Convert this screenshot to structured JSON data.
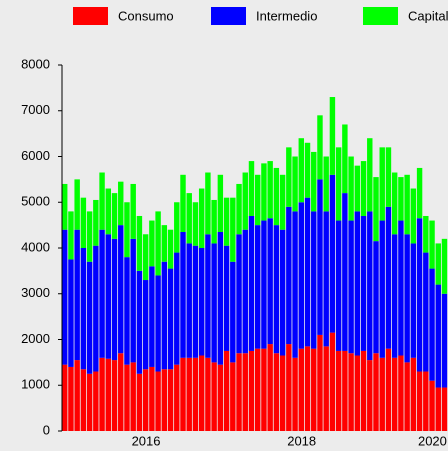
{
  "chart_data": {
    "type": "stacked_bar",
    "categories": [
      null,
      null,
      null,
      null,
      null,
      null,
      null,
      null,
      null,
      null,
      null,
      null,
      null,
      "2016",
      null,
      null,
      null,
      null,
      null,
      null,
      null,
      null,
      null,
      null,
      null,
      null,
      null,
      null,
      null,
      null,
      null,
      null,
      null,
      null,
      null,
      null,
      null,
      null,
      "2018",
      null,
      null,
      null,
      null,
      null,
      null,
      null,
      null,
      null,
      null,
      null,
      null,
      null,
      null,
      null,
      null,
      null,
      null,
      null,
      null,
      "2020",
      null,
      null
    ],
    "series": [
      {
        "name": "Consumo",
        "color": "#ff0000",
        "values": [
          1450,
          1400,
          1550,
          1350,
          1250,
          1300,
          1600,
          1580,
          1550,
          1700,
          1450,
          1500,
          1250,
          1350,
          1400,
          1300,
          1350,
          1350,
          1450,
          1600,
          1600,
          1600,
          1650,
          1600,
          1500,
          1450,
          1750,
          1500,
          1700,
          1700,
          1750,
          1800,
          1800,
          1900,
          1700,
          1650,
          1900,
          1600,
          1800,
          1850,
          1800,
          2100,
          1850,
          2150,
          1750,
          1750,
          1700,
          1650,
          1750,
          1550,
          1700,
          1600,
          1800,
          1600,
          1650,
          1500,
          1600,
          1300,
          1300,
          1100,
          950,
          950
        ]
      },
      {
        "name": "Intermedio",
        "color": "#0000ff",
        "values": [
          2950,
          2350,
          2850,
          2650,
          2450,
          2750,
          2800,
          2720,
          2650,
          2800,
          2350,
          2700,
          2250,
          1950,
          2200,
          2100,
          2350,
          2200,
          2450,
          2750,
          2500,
          2450,
          2350,
          2700,
          2600,
          2900,
          2300,
          2200,
          2600,
          2700,
          2950,
          2700,
          2800,
          2750,
          2800,
          2750,
          3000,
          3200,
          3200,
          3250,
          3000,
          3400,
          2950,
          3450,
          2850,
          3450,
          2900,
          3150,
          2950,
          3250,
          2450,
          3000,
          3100,
          2700,
          2950,
          2800,
          2500,
          3350,
          2600,
          2450,
          2250,
          2050
        ]
      },
      {
        "name": "Capital",
        "color": "#00ff00",
        "values": [
          1000,
          1050,
          1100,
          1100,
          1100,
          1000,
          1250,
          1000,
          1000,
          950,
          1200,
          1200,
          1200,
          1000,
          1000,
          1400,
          800,
          850,
          1100,
          1250,
          1100,
          950,
          1300,
          1350,
          950,
          1250,
          1050,
          1400,
          1100,
          1250,
          1200,
          1100,
          1250,
          1250,
          1250,
          1200,
          1300,
          1200,
          1400,
          1200,
          1300,
          1400,
          1200,
          1700,
          1600,
          1500,
          1400,
          1000,
          1200,
          1600,
          1400,
          1600,
          1300,
          1350,
          950,
          1300,
          1200,
          1100,
          800,
          1050,
          900,
          1200
        ]
      }
    ],
    "ylim": [
      0,
      8000
    ],
    "yticks": [
      0,
      1000,
      2000,
      3000,
      4000,
      5000,
      6000,
      7000,
      8000
    ],
    "legend": "top"
  }
}
